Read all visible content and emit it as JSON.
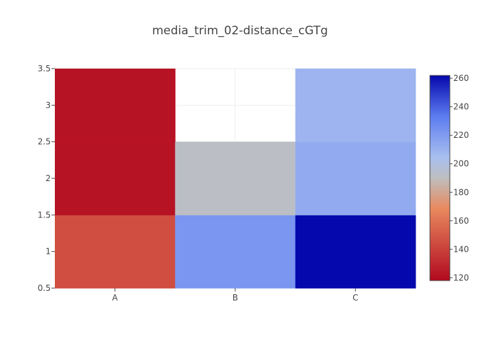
{
  "chart_data": {
    "type": "heatmap",
    "title": "media_trim_02-distance_cGTg",
    "xlabel": "",
    "ylabel": "",
    "x_categories": [
      "A",
      "B",
      "C"
    ],
    "y_values": [
      1,
      2,
      3
    ],
    "z": [
      [
        145,
        222,
        262
      ],
      [
        122,
        192,
        213
      ],
      [
        122,
        null,
        209
      ]
    ],
    "ylim": [
      0.5,
      3.5
    ],
    "y_ticks": [
      "0.5",
      "1",
      "1.5",
      "2",
      "2.5",
      "3",
      "3.5"
    ],
    "grid": true,
    "colorscale": {
      "min": 118,
      "max": 262,
      "ticks": [
        "120",
        "140",
        "160",
        "180",
        "200",
        "220",
        "240",
        "260"
      ],
      "stops": [
        [
          0.0,
          "#b2091f"
        ],
        [
          0.35,
          "#e8895e"
        ],
        [
          0.5,
          "#bebebe"
        ],
        [
          0.6,
          "#a9bff0"
        ],
        [
          0.8,
          "#5c7cf0"
        ],
        [
          1.0,
          "#0508ad"
        ]
      ],
      "placement": "right"
    }
  }
}
